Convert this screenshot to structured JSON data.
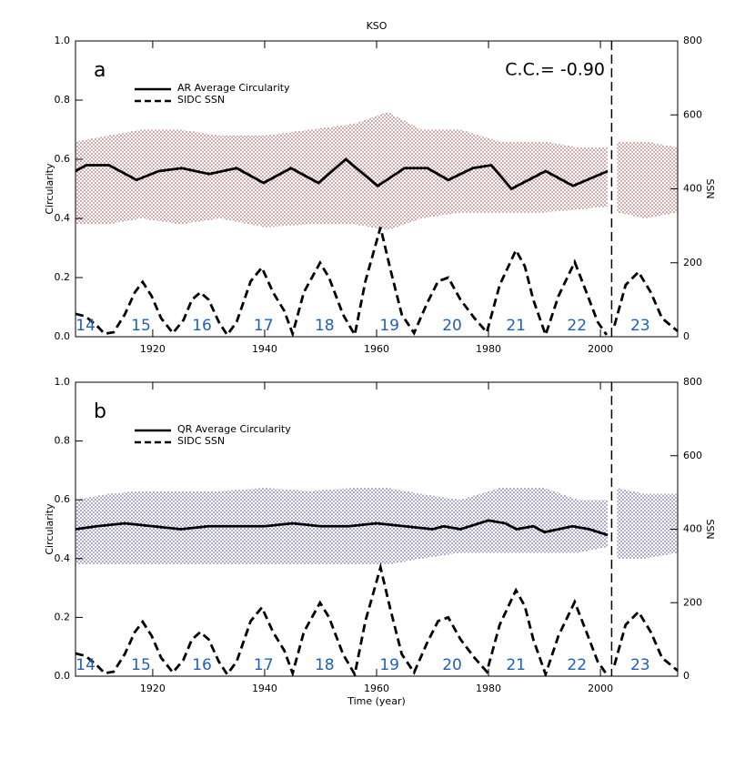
{
  "chart_data": [
    {
      "type": "line",
      "title": "KSO",
      "panel_label": "a",
      "annotation": "C.C.= -0.90",
      "ylabel": "Circularity",
      "y2label": "SSN",
      "xlim": [
        1906.2,
        2013.8
      ],
      "xticks": [
        1920,
        1940,
        1960,
        1980,
        2000
      ],
      "ylim": [
        0,
        1
      ],
      "yticks": [
        {
          "value": 0,
          "label": "0.0"
        },
        0.2,
        0.4,
        0.6,
        0.8,
        {
          "value": 1,
          "label": "1.0"
        }
      ],
      "y2lim": [
        0,
        800
      ],
      "y2ticks": [
        0,
        200,
        400,
        600,
        800
      ],
      "vline": 2002,
      "cycles": {
        "labels": [
          14,
          15,
          16,
          17,
          18,
          19,
          20,
          21,
          22,
          23
        ],
        "x": [
          1908,
          1917.9,
          1928.8,
          1939.8,
          1950.7,
          1962.3,
          1973.5,
          1984.9,
          1995.8,
          2007.1
        ],
        "color": "#1f5fbf"
      },
      "point_cloud": {
        "color": "#8b1a1a",
        "x": [
          1906.2,
          1912,
          1918,
          1925,
          1932,
          1940,
          1948,
          1956,
          1962,
          1968,
          1975,
          1982,
          1990,
          1996,
          2001.3,
          2002,
          2003,
          2008,
          2013.8
        ],
        "low": [
          0.38,
          0.38,
          0.4,
          0.38,
          0.4,
          0.37,
          0.38,
          0.38,
          0.36,
          0.4,
          0.42,
          0.42,
          0.42,
          0.43,
          0.44,
          null,
          0.42,
          0.4,
          0.42
        ],
        "high": [
          0.66,
          0.68,
          0.7,
          0.7,
          0.68,
          0.68,
          0.7,
          0.72,
          0.76,
          0.7,
          0.7,
          0.66,
          0.66,
          0.64,
          0.64,
          null,
          0.66,
          0.66,
          0.64
        ]
      },
      "series": [
        {
          "name": "AR Average Circularity",
          "color": "#000000",
          "dash": false,
          "x": [
            1906.2,
            1908.1,
            1912.2,
            1917.1,
            1921.1,
            1925.2,
            1930.1,
            1935,
            1939.8,
            1944.7,
            1949.6,
            1954.5,
            1960.2,
            1965,
            1969.1,
            1972.8,
            1977.2,
            1980.5,
            1984.1,
            1990.2,
            1995.1,
            2001.3
          ],
          "values": [
            0.56,
            0.58,
            0.58,
            0.53,
            0.56,
            0.57,
            0.55,
            0.57,
            0.52,
            0.57,
            0.52,
            0.6,
            0.51,
            0.57,
            0.57,
            0.53,
            0.57,
            0.58,
            0.5,
            0.56,
            0.51,
            0.56
          ]
        },
        {
          "name": "SIDC SSN",
          "color": "#000000",
          "dash": true,
          "axis": "y2",
          "x": [
            1906.2,
            1908,
            1910,
            1911.4,
            1913,
            1915,
            1916.8,
            1918.2,
            1919.8,
            1921.5,
            1923.6,
            1925.5,
            1927,
            1928.5,
            1930,
            1931.8,
            1933.3,
            1935,
            1937.5,
            1939.5,
            1941.5,
            1943.5,
            1945,
            1947,
            1949.9,
            1951.5,
            1954,
            1956.1,
            1958,
            1960.7,
            1962.5,
            1964.5,
            1966.7,
            1969,
            1971,
            1972.8,
            1975,
            1977.5,
            1979.7,
            1982,
            1984.9,
            1986.5,
            1988,
            1990.2,
            1992.5,
            1995.4,
            1997.5,
            1999.5,
            2001.1,
            2002,
            2002.5,
            2004.5,
            2006.8,
            2009,
            2011,
            2013.8
          ],
          "values": [
            62,
            55,
            30,
            8,
            12,
            60,
            120,
            148,
            110,
            50,
            10,
            45,
            100,
            120,
            100,
            40,
            5,
            40,
            150,
            187,
            120,
            70,
            8,
            120,
            200,
            160,
            60,
            5,
            150,
            296,
            180,
            60,
            10,
            90,
            150,
            160,
            100,
            50,
            12,
            140,
            234,
            190,
            100,
            5,
            110,
            202,
            120,
            40,
            5,
            null,
            30,
            140,
            175,
            120,
            50,
            15
          ]
        }
      ]
    },
    {
      "type": "line",
      "panel_label": "b",
      "xlabel": "Time (year)",
      "ylabel": "Circularity",
      "y2label": "SSN",
      "xlim": [
        1906.2,
        2013.8
      ],
      "xticks": [
        1920,
        1940,
        1960,
        1980,
        2000
      ],
      "ylim": [
        0,
        1
      ],
      "yticks": [
        {
          "value": 0,
          "label": "0.0"
        },
        0.2,
        0.4,
        0.6,
        0.8,
        {
          "value": 1,
          "label": "1.0"
        }
      ],
      "y2lim": [
        0,
        800
      ],
      "y2ticks": [
        0,
        200,
        400,
        600,
        800
      ],
      "vline": 2002,
      "cycles": {
        "labels": [
          14,
          15,
          16,
          17,
          18,
          19,
          20,
          21,
          22,
          23
        ],
        "x": [
          1908,
          1917.9,
          1928.8,
          1939.8,
          1950.7,
          1962.3,
          1973.5,
          1984.9,
          1995.8,
          2007.1
        ],
        "color": "#1f5fbf"
      },
      "point_cloud": {
        "color": "#1a1a80",
        "x": [
          1906.2,
          1912,
          1918,
          1925,
          1932,
          1940,
          1948,
          1956,
          1962,
          1968,
          1975,
          1982,
          1990,
          1996,
          2001.3,
          2002,
          2003,
          2008,
          2013.8
        ],
        "low": [
          0.38,
          0.38,
          0.38,
          0.38,
          0.38,
          0.38,
          0.38,
          0.38,
          0.38,
          0.4,
          0.42,
          0.42,
          0.42,
          0.42,
          0.44,
          null,
          0.4,
          0.4,
          0.42
        ],
        "high": [
          0.6,
          0.62,
          0.63,
          0.63,
          0.63,
          0.64,
          0.63,
          0.64,
          0.64,
          0.62,
          0.6,
          0.64,
          0.64,
          0.6,
          0.6,
          null,
          0.64,
          0.62,
          0.62
        ]
      },
      "series": [
        {
          "name": "QR Average Circularity",
          "color": "#000000",
          "dash": false,
          "x": [
            1906.2,
            1910,
            1915,
            1920,
            1925,
            1930,
            1935,
            1940,
            1945,
            1950,
            1955,
            1960,
            1965,
            1970,
            1972,
            1975,
            1980,
            1983,
            1985,
            1988,
            1990,
            1995,
            1998,
            2001.3
          ],
          "values": [
            0.5,
            0.51,
            0.52,
            0.51,
            0.5,
            0.51,
            0.51,
            0.51,
            0.52,
            0.51,
            0.51,
            0.52,
            0.51,
            0.5,
            0.51,
            0.5,
            0.53,
            0.52,
            0.5,
            0.51,
            0.49,
            0.51,
            0.5,
            0.48
          ]
        },
        {
          "name": "SIDC SSN",
          "color": "#000000",
          "dash": true,
          "axis": "y2",
          "x": [
            1906.2,
            1908,
            1910,
            1911.4,
            1913,
            1915,
            1916.8,
            1918.2,
            1919.8,
            1921.5,
            1923.6,
            1925.5,
            1927,
            1928.5,
            1930,
            1931.8,
            1933.3,
            1935,
            1937.5,
            1939.5,
            1941.5,
            1943.5,
            1945,
            1947,
            1949.9,
            1951.5,
            1954,
            1956.1,
            1958,
            1960.7,
            1962.5,
            1964.5,
            1966.7,
            1969,
            1971,
            1972.8,
            1975,
            1977.5,
            1979.7,
            1982,
            1984.9,
            1986.5,
            1988,
            1990.2,
            1992.5,
            1995.4,
            1997.5,
            1999.5,
            2001.1,
            2002,
            2002.5,
            2004.5,
            2006.8,
            2009,
            2011,
            2013.8
          ],
          "values": [
            62,
            55,
            30,
            8,
            12,
            60,
            120,
            148,
            110,
            50,
            10,
            45,
            100,
            120,
            100,
            40,
            5,
            40,
            150,
            187,
            120,
            70,
            8,
            120,
            200,
            160,
            60,
            5,
            150,
            296,
            180,
            60,
            10,
            90,
            150,
            160,
            100,
            50,
            12,
            140,
            234,
            190,
            100,
            5,
            110,
            202,
            120,
            40,
            5,
            null,
            30,
            140,
            175,
            120,
            50,
            15
          ]
        }
      ]
    }
  ]
}
